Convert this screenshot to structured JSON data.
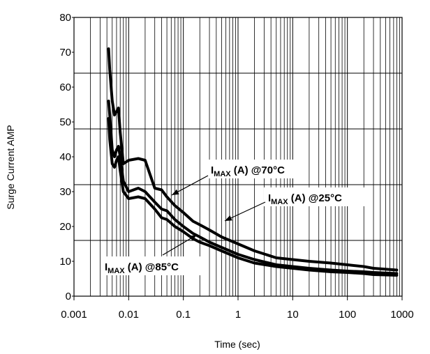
{
  "chart_data": {
    "type": "line",
    "title": "",
    "xlabel": "Time (sec)",
    "ylabel": "Surge Current AMP",
    "x_scale": "log",
    "xlim": [
      0.001,
      1000
    ],
    "ylim": [
      0,
      80
    ],
    "x_tick_labels": [
      "0.001",
      "0.01",
      "0.1",
      "1",
      "10",
      "100",
      "1000"
    ],
    "y_tick_labels": [
      "0",
      "10",
      "20",
      "30",
      "40",
      "50",
      "60",
      "70",
      "80"
    ],
    "grid": true,
    "series": [
      {
        "name": "IMAX (A) @25°C",
        "x": [
          0.0043,
          0.0045,
          0.005,
          0.0055,
          0.006,
          0.0065,
          0.007,
          0.008,
          0.01,
          0.015,
          0.02,
          0.03,
          0.04,
          0.05,
          0.07,
          0.1,
          0.15,
          0.2,
          0.3,
          0.5,
          1,
          2,
          5,
          10,
          20,
          50,
          100,
          200,
          300,
          800
        ],
        "y": [
          71,
          65,
          56,
          52,
          53,
          54,
          47,
          38,
          39,
          39.5,
          39,
          31,
          30.5,
          28.5,
          26,
          24,
          21.5,
          20.5,
          19,
          17,
          15,
          13,
          11,
          10.5,
          10,
          9.5,
          9,
          8.5,
          8,
          7.5
        ]
      },
      {
        "name": "IMAX (A) @70°C",
        "x": [
          0.0043,
          0.0045,
          0.005,
          0.0055,
          0.006,
          0.0065,
          0.007,
          0.008,
          0.01,
          0.015,
          0.02,
          0.03,
          0.04,
          0.05,
          0.07,
          0.1,
          0.15,
          0.2,
          0.3,
          0.5,
          1,
          2,
          5,
          10,
          20,
          50,
          100,
          200,
          300,
          800
        ],
        "y": [
          56,
          52,
          42,
          40,
          42,
          43,
          40,
          33,
          30,
          31,
          30,
          27,
          25,
          24.5,
          22,
          20,
          18,
          17,
          15.5,
          14,
          12,
          10.5,
          9,
          8.5,
          8,
          7.5,
          7.2,
          7,
          6.8,
          6.5
        ]
      },
      {
        "name": "IMAX (A) @85°C",
        "x": [
          0.0043,
          0.0045,
          0.005,
          0.0055,
          0.006,
          0.0065,
          0.007,
          0.008,
          0.01,
          0.015,
          0.02,
          0.03,
          0.04,
          0.05,
          0.07,
          0.1,
          0.15,
          0.2,
          0.3,
          0.5,
          1,
          2,
          5,
          10,
          20,
          50,
          100,
          200,
          300,
          800
        ],
        "y": [
          51,
          45,
          38,
          37,
          39,
          40,
          36,
          30,
          28,
          28.5,
          28,
          25,
          22.5,
          22,
          20,
          18.5,
          16.5,
          15.5,
          14.5,
          13,
          11,
          9.5,
          8.5,
          8,
          7.5,
          7,
          6.8,
          6.5,
          6.2,
          6
        ]
      }
    ],
    "annotations": [
      {
        "prefix": "I",
        "sub": "MAX",
        "suffix": " (A) @70°C"
      },
      {
        "prefix": "I",
        "sub": "MAX",
        "suffix": " (A) @25°C"
      },
      {
        "prefix": "I",
        "sub": "MAX",
        "suffix": " (A) @85°C"
      }
    ]
  }
}
